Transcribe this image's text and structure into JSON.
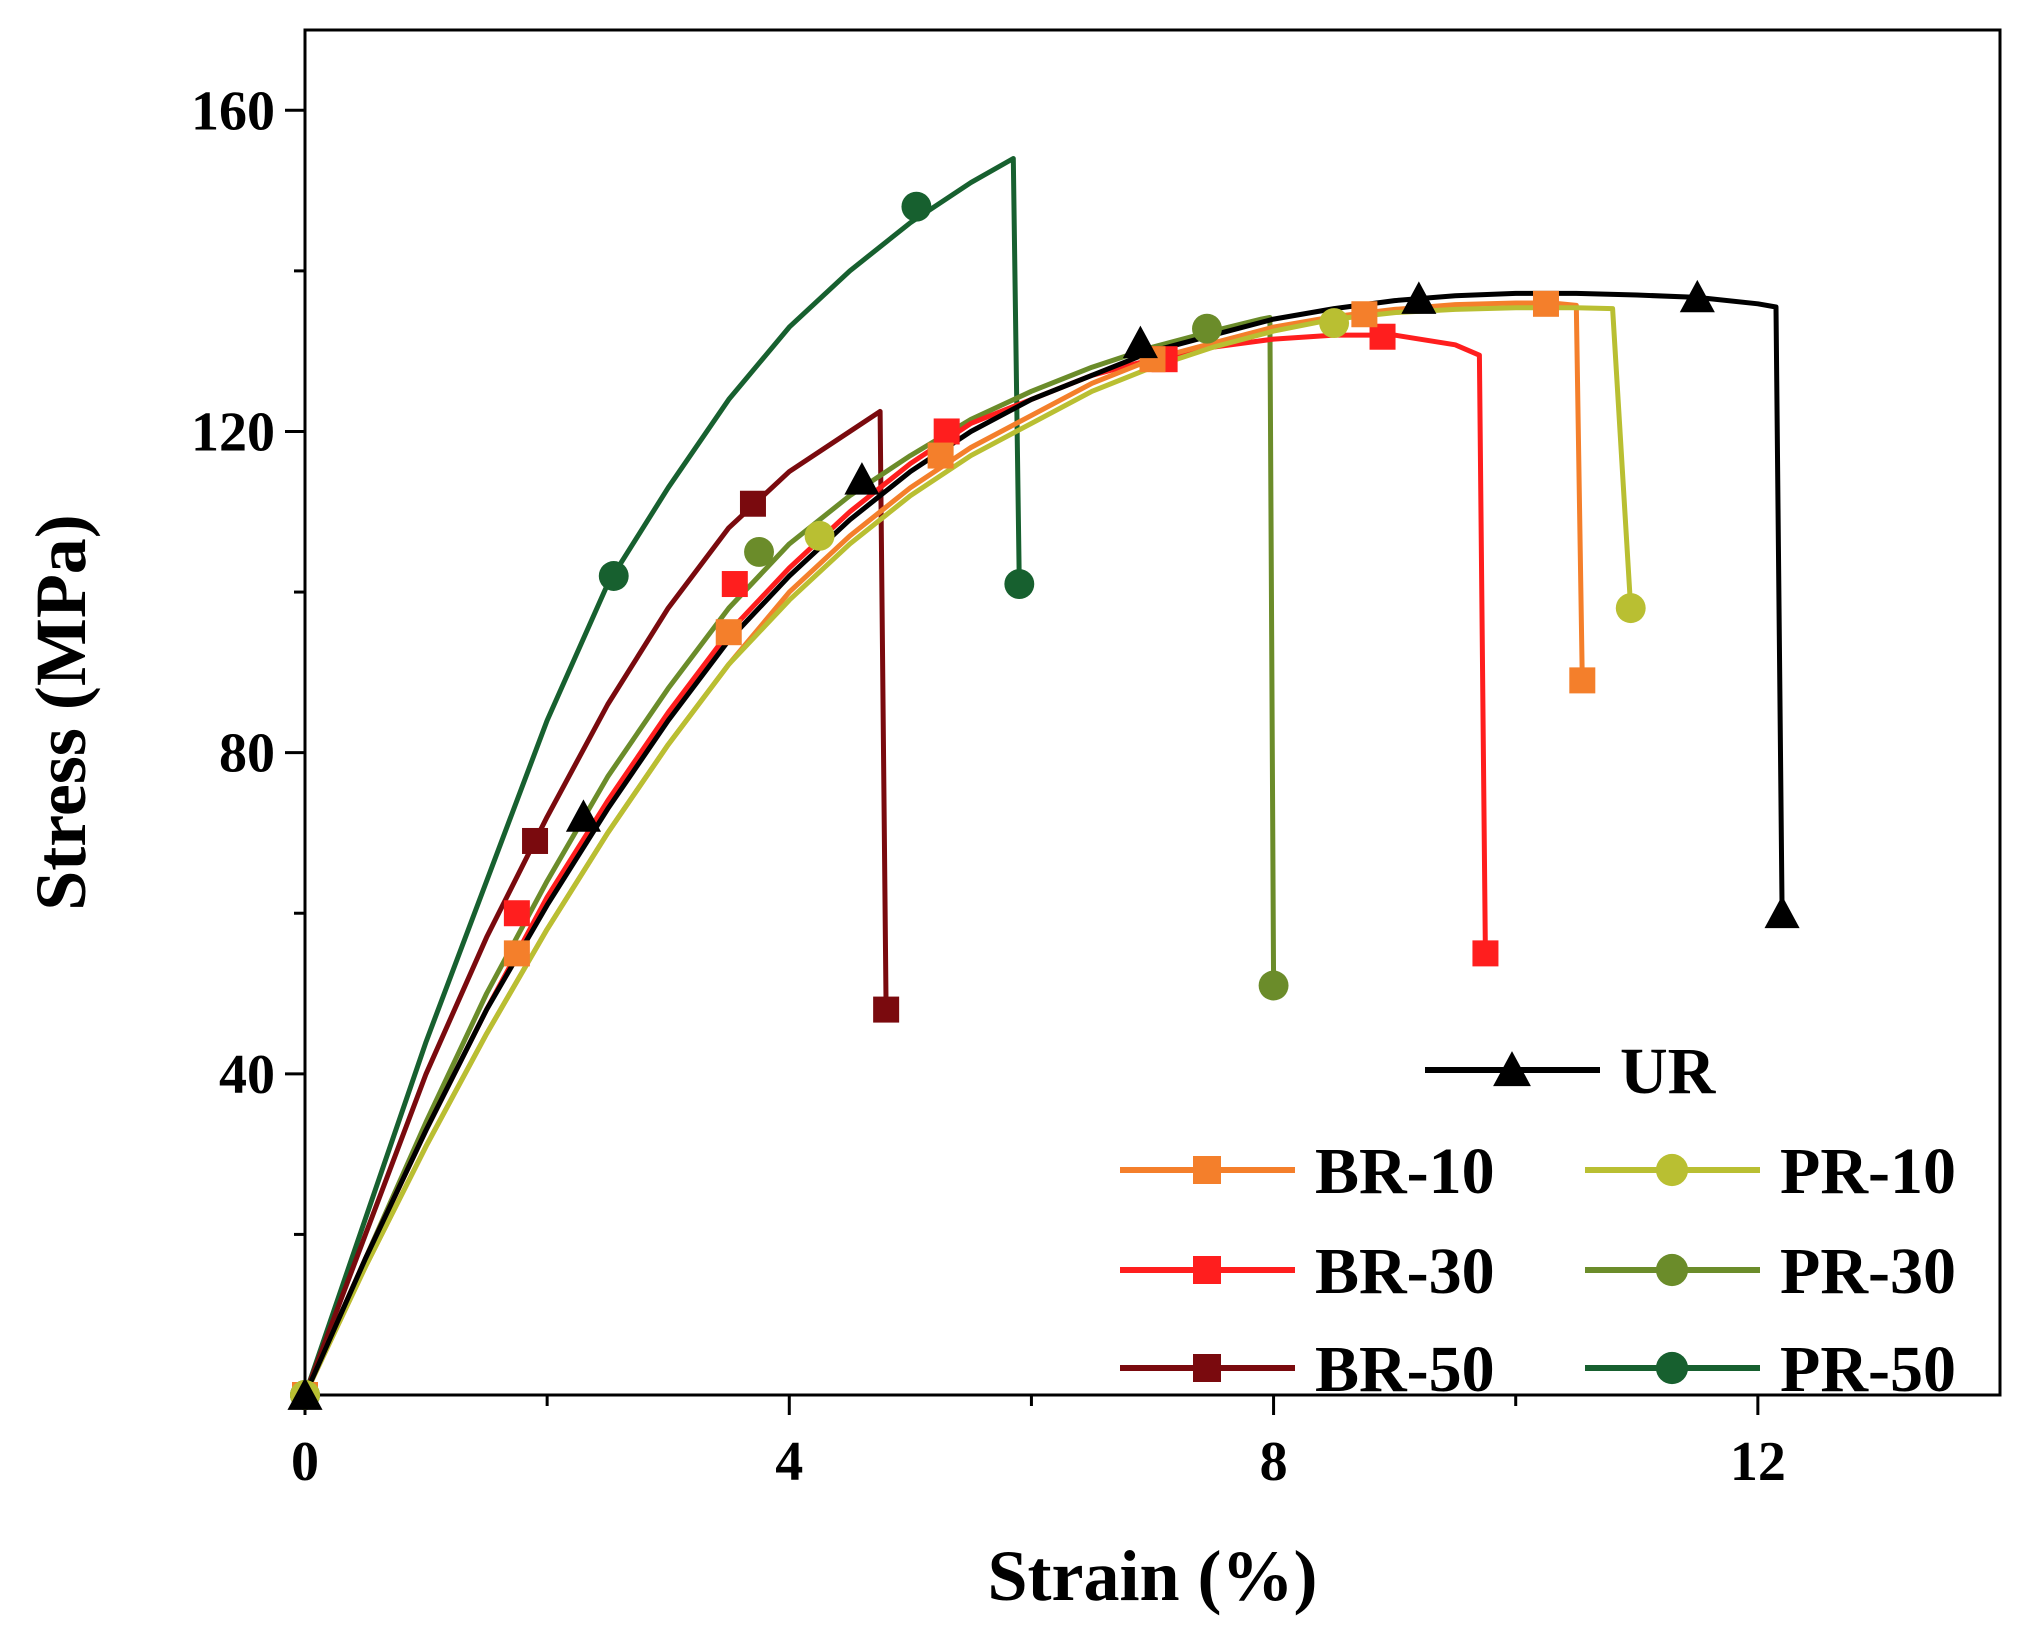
{
  "chart_data": {
    "type": "line",
    "title": "",
    "xlabel": "Strain (%)",
    "ylabel": "Stress (MPa)",
    "xlim": [
      0,
      14
    ],
    "ylim": [
      0,
      170
    ],
    "xticks": [
      0,
      4,
      8,
      12
    ],
    "yticks": [
      40,
      80,
      120,
      160
    ],
    "grid": false,
    "legend_position": "bottom-right",
    "series": [
      {
        "name": "UR",
        "color": "#000000",
        "marker": "triangle",
        "x": [
          0,
          0.5,
          1,
          1.5,
          2,
          2.5,
          3,
          3.5,
          4,
          4.5,
          5,
          5.5,
          6,
          6.5,
          7,
          7.5,
          8,
          8.5,
          9,
          9.5,
          10,
          10.5,
          11,
          11.5,
          12,
          12.15,
          12.2
        ],
        "y": [
          0,
          17,
          33,
          48,
          61,
          73,
          84,
          94,
          102,
          109,
          115,
          120,
          124,
          127,
          130,
          132,
          134,
          135.3,
          136.3,
          136.9,
          137.2,
          137.2,
          137,
          136.7,
          135.9,
          135.5,
          60
        ],
        "marker_x": [
          0,
          2.3,
          4.6,
          6.9,
          9.2,
          11.5,
          12.2
        ],
        "marker_y": [
          0,
          72,
          114,
          131,
          136.5,
          136.7,
          60
        ]
      },
      {
        "name": "BR-10",
        "color": "#F47F2B",
        "marker": "square",
        "x": [
          0,
          0.5,
          1,
          1.5,
          2,
          2.5,
          3,
          3.5,
          4,
          4.5,
          5,
          5.5,
          6,
          6.5,
          7,
          7.5,
          8,
          8.5,
          9,
          9.5,
          10,
          10.3,
          10.5,
          10.55
        ],
        "y": [
          0,
          16,
          31,
          45,
          58,
          70,
          81,
          91,
          100,
          107,
          113,
          118,
          122,
          126,
          129,
          131,
          133,
          134.3,
          135.2,
          135.8,
          136,
          136,
          135.7,
          89
        ],
        "marker_x": [
          0,
          1.75,
          3.5,
          5.25,
          7,
          8.75,
          10.25,
          10.55
        ],
        "marker_y": [
          0,
          55,
          95,
          117,
          129,
          134.6,
          135.9,
          89
        ]
      },
      {
        "name": "BR-30",
        "color": "#FF1E1E",
        "marker": "square",
        "x": [
          0,
          0.5,
          1,
          1.5,
          2,
          2.5,
          3,
          3.5,
          4,
          4.5,
          5,
          5.5,
          6,
          6.5,
          7,
          7.5,
          8,
          8.5,
          9,
          9.5,
          9.7,
          9.75
        ],
        "y": [
          0,
          17,
          33,
          48,
          62,
          74,
          85,
          95,
          103,
          110,
          116,
          121,
          124,
          127,
          129,
          130.5,
          131.5,
          132,
          132,
          130.8,
          129.5,
          55
        ],
        "marker_x": [
          0,
          1.75,
          3.55,
          5.3,
          7.1,
          8.9,
          9.75
        ],
        "marker_y": [
          0,
          60,
          101,
          120,
          129,
          131.8,
          55
        ]
      },
      {
        "name": "BR-50",
        "color": "#7A0A0E",
        "marker": "square",
        "x": [
          0,
          0.5,
          1,
          1.5,
          2,
          2.5,
          3,
          3.5,
          4,
          4.5,
          4.75,
          4.8
        ],
        "y": [
          0,
          20,
          40,
          57,
          72,
          86,
          98,
          108,
          115,
          120,
          122.5,
          48
        ],
        "marker_x": [
          0,
          1.9,
          3.7,
          4.8
        ],
        "marker_y": [
          0,
          69,
          111,
          48
        ]
      },
      {
        "name": "PR-10",
        "color": "#B9BF32",
        "marker": "circle",
        "x": [
          0,
          0.5,
          1,
          1.5,
          2,
          2.5,
          3,
          3.5,
          4,
          4.5,
          5,
          5.5,
          6,
          6.5,
          7,
          7.5,
          8,
          8.5,
          9,
          9.5,
          10,
          10.5,
          10.8,
          10.95
        ],
        "y": [
          0,
          16,
          31,
          45,
          58,
          70,
          81,
          91,
          99,
          106,
          112,
          117,
          121,
          125,
          128,
          130.5,
          132.5,
          134,
          134.8,
          135.2,
          135.4,
          135.4,
          135.3,
          98
        ],
        "marker_x": [
          0,
          4.25,
          8.5,
          10.95
        ],
        "marker_y": [
          0,
          107,
          133.5,
          98
        ]
      },
      {
        "name": "PR-30",
        "color": "#6B8C2A",
        "marker": "circle",
        "x": [
          0,
          0.5,
          1,
          1.5,
          2,
          2.5,
          3,
          3.5,
          4,
          4.5,
          5,
          5.5,
          6,
          6.5,
          7,
          7.5,
          7.9,
          7.97,
          8
        ],
        "y": [
          0,
          17,
          34,
          50,
          64,
          77,
          88,
          98,
          106,
          112,
          117,
          121.5,
          125,
          128,
          130.5,
          132.5,
          134,
          134.2,
          51
        ],
        "marker_x": [
          0,
          3.75,
          7.45,
          8
        ],
        "marker_y": [
          0,
          105,
          132.8,
          51
        ]
      },
      {
        "name": "PR-50",
        "color": "#17602F",
        "marker": "circle",
        "x": [
          0,
          0.5,
          1,
          1.5,
          2,
          2.5,
          3,
          3.5,
          4,
          4.5,
          5,
          5.5,
          5.85,
          5.9
        ],
        "y": [
          0,
          22,
          44,
          64,
          84,
          101,
          113,
          124,
          133,
          140,
          146,
          151,
          154,
          101
        ],
        "marker_x": [
          0,
          2.55,
          5.05,
          5.9
        ],
        "marker_y": [
          0,
          102,
          148,
          101
        ]
      }
    ],
    "legend": [
      {
        "label": "UR",
        "series": 0
      },
      {
        "label": "BR-10",
        "series": 1
      },
      {
        "label": "PR-10",
        "series": 4
      },
      {
        "label": "BR-30",
        "series": 2
      },
      {
        "label": "PR-30",
        "series": 5
      },
      {
        "label": "BR-50",
        "series": 3
      },
      {
        "label": "PR-50",
        "series": 6
      }
    ]
  }
}
